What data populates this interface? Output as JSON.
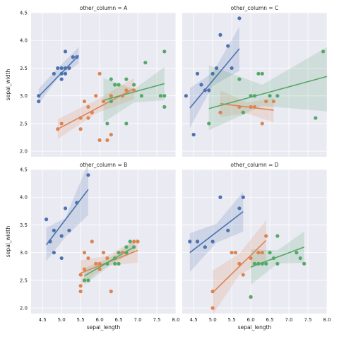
{
  "chart_data": {
    "type": "scatter",
    "layout": "facet-grid",
    "xlabel": "sepal_length",
    "ylabel": "sepal_width",
    "xlim": [
      4.2,
      8.0
    ],
    "ylim": [
      1.9,
      4.5
    ],
    "xticks": [
      "4.5",
      "5.0",
      "5.5",
      "6.0",
      "6.5",
      "7.0",
      "7.5",
      "8.0"
    ],
    "yticks": [
      "2.0",
      "2.5",
      "3.0",
      "3.5",
      "4.0",
      "4.5"
    ],
    "grid": true,
    "colors": {
      "setosa": "#4c72b0",
      "versicolor": "#dd8452",
      "virginica": "#55a868"
    },
    "panels": [
      {
        "title": "other_column = A",
        "series": [
          {
            "color": "#4c72b0",
            "points": [
              [
                4.4,
                3.0
              ],
              [
                4.4,
                2.9
              ],
              [
                4.8,
                3.4
              ],
              [
                4.9,
                3.5
              ],
              [
                5.0,
                3.4
              ],
              [
                5.0,
                3.5
              ],
              [
                5.0,
                3.3
              ],
              [
                5.1,
                3.5
              ],
              [
                5.1,
                3.4
              ],
              [
                5.1,
                3.8
              ],
              [
                5.2,
                3.5
              ],
              [
                5.3,
                3.7
              ],
              [
                5.4,
                3.7
              ]
            ],
            "line": [
              [
                4.4,
                2.99
              ],
              [
                5.45,
                3.73
              ]
            ],
            "band": [
              [
                4.4,
                2.85,
                3.13
              ],
              [
                4.9,
                3.32,
                3.5
              ],
              [
                5.45,
                3.58,
                3.88
              ]
            ]
          },
          {
            "color": "#dd8452",
            "points": [
              [
                4.9,
                2.4
              ],
              [
                5.0,
                2.5
              ],
              [
                5.5,
                2.4
              ],
              [
                5.5,
                2.6
              ],
              [
                5.6,
                2.9
              ],
              [
                5.7,
                2.8
              ],
              [
                5.7,
                2.6
              ],
              [
                5.8,
                2.7
              ],
              [
                5.9,
                3.0
              ],
              [
                6.0,
                2.2
              ],
              [
                6.0,
                3.4
              ],
              [
                6.1,
                2.9
              ],
              [
                6.2,
                2.2
              ],
              [
                6.3,
                3.0
              ],
              [
                6.3,
                2.3
              ],
              [
                6.4,
                3.2
              ],
              [
                6.6,
                3.0
              ],
              [
                6.7,
                3.1
              ],
              [
                6.9,
                3.1
              ]
            ],
            "line": [
              [
                4.9,
                2.4
              ],
              [
                6.9,
                3.13
              ]
            ],
            "band": [
              [
                4.9,
                2.22,
                2.58
              ],
              [
                5.9,
                2.68,
                2.92
              ],
              [
                6.9,
                2.94,
                3.32
              ]
            ]
          },
          {
            "color": "#55a868",
            "points": [
              [
                6.2,
                2.5
              ],
              [
                6.3,
                2.9
              ],
              [
                6.3,
                3.3
              ],
              [
                6.4,
                3.2
              ],
              [
                6.5,
                3.2
              ],
              [
                6.7,
                2.5
              ],
              [
                6.7,
                3.3
              ],
              [
                6.9,
                3.2
              ],
              [
                7.1,
                3.0
              ],
              [
                7.2,
                3.6
              ],
              [
                7.6,
                3.0
              ],
              [
                7.7,
                3.8
              ],
              [
                7.7,
                3.0
              ],
              [
                7.7,
                2.8
              ]
            ],
            "line": [
              [
                6.1,
                2.92
              ],
              [
                7.7,
                3.22
              ]
            ],
            "band": [
              [
                6.1,
                2.52,
                3.32
              ],
              [
                6.9,
                2.88,
                3.12
              ],
              [
                7.7,
                2.92,
                3.52
              ]
            ]
          }
        ]
      },
      {
        "title": "other_column = C",
        "series": [
          {
            "color": "#4c72b0",
            "points": [
              [
                4.3,
                3.0
              ],
              [
                4.5,
                2.3
              ],
              [
                4.6,
                3.4
              ],
              [
                4.7,
                3.2
              ],
              [
                4.8,
                3.1
              ],
              [
                4.9,
                3.1
              ],
              [
                5.0,
                3.4
              ],
              [
                5.1,
                3.5
              ],
              [
                5.2,
                4.1
              ],
              [
                5.4,
                3.9
              ],
              [
                5.5,
                3.5
              ],
              [
                5.7,
                4.4
              ]
            ],
            "line": [
              [
                4.4,
                2.78
              ],
              [
                5.7,
                3.85
              ]
            ],
            "band": [
              [
                4.4,
                2.42,
                3.14
              ],
              [
                5.0,
                3.18,
                3.42
              ],
              [
                5.7,
                3.45,
                4.25
              ]
            ]
          },
          {
            "color": "#dd8452",
            "points": [
              [
                5.2,
                2.7
              ],
              [
                5.7,
                2.8
              ],
              [
                5.8,
                2.7
              ],
              [
                6.0,
                2.8
              ],
              [
                6.1,
                2.8
              ],
              [
                6.3,
                2.5
              ],
              [
                6.4,
                2.9
              ],
              [
                6.6,
                2.9
              ]
            ],
            "line": [
              [
                5.2,
                2.86
              ],
              [
                6.6,
                2.74
              ]
            ],
            "band": [
              [
                5.2,
                2.62,
                3.1
              ],
              [
                5.9,
                2.68,
                2.88
              ],
              [
                6.6,
                2.52,
                2.96
              ]
            ]
          },
          {
            "color": "#55a868",
            "points": [
              [
                4.9,
                2.5
              ],
              [
                5.7,
                3.3
              ],
              [
                5.8,
                2.7
              ],
              [
                6.0,
                3.0
              ],
              [
                6.1,
                3.0
              ],
              [
                6.2,
                3.4
              ],
              [
                6.3,
                3.4
              ],
              [
                6.5,
                3.0
              ],
              [
                6.7,
                3.0
              ],
              [
                7.7,
                2.6
              ],
              [
                7.9,
                3.8
              ]
            ],
            "line": [
              [
                4.9,
                2.77
              ],
              [
                8.0,
                3.35
              ]
            ],
            "band": [
              [
                4.9,
                2.38,
                3.55
              ],
              [
                6.3,
                2.82,
                3.2
              ],
              [
                8.0,
                2.72,
                3.88
              ]
            ]
          }
        ]
      },
      {
        "title": "other_column = B",
        "series": [
          {
            "color": "#4c72b0",
            "points": [
              [
                4.6,
                3.6
              ],
              [
                4.7,
                3.2
              ],
              [
                4.8,
                3.4
              ],
              [
                4.8,
                3.0
              ],
              [
                5.0,
                3.3
              ],
              [
                5.0,
                2.9
              ],
              [
                5.1,
                3.8
              ],
              [
                5.2,
                3.4
              ],
              [
                5.4,
                3.9
              ],
              [
                5.7,
                4.4
              ]
            ],
            "line": [
              [
                4.6,
                3.14
              ],
              [
                5.7,
                4.14
              ]
            ],
            "band": [
              [
                4.6,
                2.85,
                3.45
              ],
              [
                5.1,
                3.28,
                3.62
              ],
              [
                5.7,
                3.68,
                4.62
              ]
            ]
          },
          {
            "color": "#dd8452",
            "points": [
              [
                5.5,
                2.3
              ],
              [
                5.5,
                2.4
              ],
              [
                5.5,
                2.6
              ],
              [
                5.6,
                2.7
              ],
              [
                5.6,
                2.5
              ],
              [
                5.6,
                3.0
              ],
              [
                5.7,
                2.9
              ],
              [
                5.7,
                2.5
              ],
              [
                5.8,
                3.2
              ],
              [
                5.9,
                2.8
              ],
              [
                6.0,
                2.7
              ],
              [
                6.0,
                2.8
              ],
              [
                6.1,
                3.0
              ],
              [
                6.2,
                2.9
              ],
              [
                6.3,
                2.3
              ],
              [
                6.6,
                3.0
              ],
              [
                6.9,
                3.2
              ],
              [
                7.0,
                3.2
              ]
            ],
            "line": [
              [
                5.5,
                2.63
              ],
              [
                7.0,
                3.04
              ]
            ],
            "band": [
              [
                5.5,
                2.42,
                2.86
              ],
              [
                6.2,
                2.76,
                2.94
              ],
              [
                7.0,
                2.82,
                3.26
              ]
            ]
          },
          {
            "color": "#55a868",
            "points": [
              [
                5.6,
                2.5
              ],
              [
                5.7,
                2.5
              ],
              [
                6.2,
                2.8
              ],
              [
                6.4,
                2.8
              ],
              [
                6.4,
                2.9
              ],
              [
                6.5,
                3.0
              ],
              [
                6.5,
                2.8
              ],
              [
                6.7,
                3.1
              ],
              [
                6.7,
                3.0
              ],
              [
                6.8,
                3.2
              ],
              [
                6.9,
                3.1
              ]
            ],
            "line": [
              [
                5.6,
                2.58
              ],
              [
                6.9,
                3.1
              ]
            ],
            "band": [
              [
                5.6,
                2.42,
                2.72
              ],
              [
                6.3,
                2.78,
                2.92
              ],
              [
                6.9,
                3.01,
                3.2
              ]
            ]
          }
        ]
      },
      {
        "title": "other_column = D",
        "series": [
          {
            "color": "#4c72b0",
            "points": [
              [
                4.4,
                3.2
              ],
              [
                4.6,
                3.2
              ],
              [
                4.8,
                3.1
              ],
              [
                5.0,
                3.2
              ],
              [
                5.2,
                4.0
              ],
              [
                5.4,
                3.4
              ],
              [
                5.7,
                3.8
              ],
              [
                5.8,
                4.0
              ]
            ],
            "line": [
              [
                4.4,
                3.0
              ],
              [
                5.8,
                3.74
              ]
            ],
            "band": [
              [
                4.4,
                2.65,
                3.35
              ],
              [
                5.1,
                3.18,
                3.52
              ],
              [
                5.8,
                3.38,
                4.1
              ]
            ]
          },
          {
            "color": "#dd8452",
            "points": [
              [
                5.0,
                2.0
              ],
              [
                5.0,
                2.3
              ],
              [
                5.5,
                3.0
              ],
              [
                5.6,
                3.0
              ],
              [
                5.7,
                2.8
              ],
              [
                5.8,
                2.6
              ],
              [
                6.0,
                2.2
              ],
              [
                6.0,
                2.9
              ],
              [
                6.1,
                2.8
              ],
              [
                6.2,
                3.0
              ],
              [
                6.3,
                3.0
              ],
              [
                6.4,
                3.3
              ]
            ],
            "line": [
              [
                5.0,
                2.28
              ],
              [
                6.4,
                3.22
              ]
            ],
            "band": [
              [
                5.0,
                1.88,
                2.68
              ],
              [
                5.7,
                2.6,
                2.98
              ],
              [
                6.4,
                2.86,
                3.58
              ]
            ]
          },
          {
            "color": "#55a868",
            "points": [
              [
                6.0,
                2.2
              ],
              [
                6.1,
                2.8
              ],
              [
                6.2,
                2.8
              ],
              [
                6.3,
                2.8
              ],
              [
                6.4,
                2.8
              ],
              [
                6.5,
                3.0
              ],
              [
                6.6,
                2.9
              ],
              [
                6.7,
                2.8
              ],
              [
                6.7,
                3.3
              ],
              [
                7.2,
                3.0
              ],
              [
                7.3,
                2.9
              ],
              [
                7.4,
                2.8
              ]
            ],
            "line": [
              [
                6.0,
                2.74
              ],
              [
                7.4,
                3.1
              ]
            ],
            "band": [
              [
                6.0,
                2.42,
                3.06
              ],
              [
                6.7,
                2.8,
                3.04
              ],
              [
                7.4,
                2.82,
                3.38
              ]
            ]
          }
        ]
      }
    ]
  }
}
